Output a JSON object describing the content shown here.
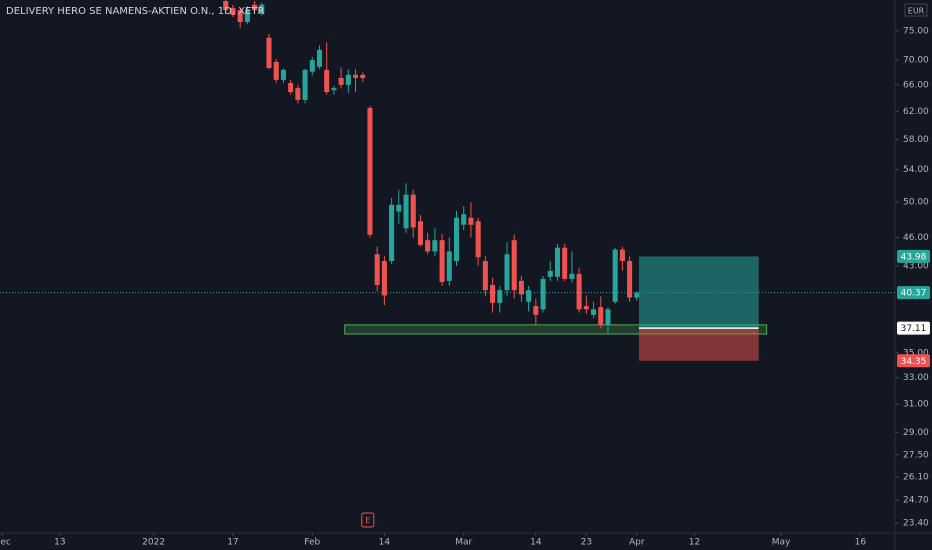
{
  "chart_data": {
    "type": "candlestick",
    "title": "DELIVERY HERO SE NAMENS-AKTIEN O.N., 1D, XETR",
    "currency": "EUR",
    "log_scale": true,
    "up_color": "#26a69a",
    "down_color": "#ef5350",
    "x": [
      0,
      1,
      2,
      3,
      4,
      5,
      6,
      7,
      8,
      9,
      10,
      11,
      12,
      13,
      14,
      15,
      16,
      17,
      18,
      19,
      20,
      21,
      22,
      23,
      24,
      25,
      26,
      27,
      28,
      29,
      30,
      31,
      32,
      33,
      34,
      35,
      36,
      37,
      38,
      39,
      40,
      41,
      42,
      43,
      44,
      45,
      46,
      47,
      48,
      49,
      50,
      51,
      52,
      53,
      54,
      55,
      56,
      57
    ],
    "open": [
      80.5,
      79.2,
      78.8,
      76.6,
      79.8,
      78.1,
      73.8,
      69.7,
      66.8,
      66.3,
      65.5,
      63.7,
      68.1,
      68.9,
      68.4,
      65.2,
      67.1,
      66.0,
      67.6,
      67.6,
      62.5,
      44.2,
      43.5,
      43.5,
      48.9,
      47.0,
      50.9,
      47.8,
      45.7,
      44.5,
      45.7,
      41.5,
      43.5,
      47.4,
      48.2,
      47.8,
      43.5,
      41.1,
      39.4,
      40.6,
      45.7,
      41.5,
      39.5,
      39.1,
      38.8,
      41.9,
      41.9,
      44.9,
      41.7,
      42.2,
      39.1,
      38.3,
      39.0,
      37.4,
      39.5,
      44.7,
      43.5,
      39.9
    ],
    "high": [
      81.5,
      79.8,
      79.2,
      79.5,
      80.5,
      80.2,
      74.5,
      70.2,
      68.6,
      66.8,
      66.0,
      68.6,
      70.5,
      72.5,
      73.0,
      65.8,
      68.8,
      68.5,
      68.5,
      68.0,
      62.8,
      45.0,
      44.0,
      50.5,
      51.5,
      52.3,
      51.5,
      48.5,
      46.5,
      47.0,
      46.4,
      46.0,
      49.0,
      49.5,
      50.0,
      48.2,
      44.0,
      41.8,
      41.0,
      45.5,
      46.3,
      42.0,
      41.0,
      39.8,
      42.0,
      43.5,
      45.3,
      45.3,
      44.5,
      42.8,
      40.1,
      39.5,
      40.0,
      39.0,
      44.9,
      45.0,
      44.0,
      40.5
    ],
    "low": [
      78.5,
      77.5,
      75.5,
      76.2,
      78.5,
      77.8,
      68.5,
      66.3,
      66.3,
      64.5,
      63.2,
      63.2,
      67.5,
      68.5,
      64.5,
      64.5,
      65.5,
      64.8,
      64.9,
      66.5,
      46.0,
      40.5,
      39.2,
      43.2,
      47.5,
      46.5,
      46.0,
      45.0,
      44.2,
      44.0,
      41.0,
      41.0,
      43.0,
      46.8,
      46.0,
      43.0,
      40.0,
      38.5,
      38.5,
      40.0,
      39.8,
      39.5,
      38.6,
      37.4,
      38.5,
      41.5,
      41.5,
      41.5,
      41.3,
      38.5,
      38.4,
      38.0,
      37.1,
      36.6,
      39.3,
      42.5,
      39.5,
      39.6
    ],
    "close": [
      78.8,
      77.9,
      76.6,
      78.8,
      78.8,
      79.8,
      68.7,
      66.8,
      68.4,
      64.9,
      63.7,
      68.4,
      70.0,
      71.7,
      64.9,
      65.5,
      66.0,
      67.6,
      67.1,
      67.1,
      46.3,
      41.1,
      40.1,
      49.7,
      49.7,
      50.9,
      47.1,
      45.2,
      44.5,
      45.7,
      41.4,
      44.5,
      48.2,
      48.6,
      47.4,
      43.9,
      40.6,
      39.4,
      40.6,
      44.2,
      40.6,
      40.2,
      40.6,
      38.3,
      41.7,
      42.5,
      44.9,
      41.7,
      42.2,
      38.8,
      38.8,
      38.8,
      37.4,
      38.8,
      44.7,
      43.5,
      39.9,
      40.37
    ],
    "xlim": [
      -31.3,
      92.8
    ],
    "ylim": [
      22.85,
      80.7
    ],
    "xticks": [
      {
        "value": -31,
        "label": "Dec"
      },
      {
        "value": -23,
        "label": "13"
      },
      {
        "value": -10,
        "label": "2022"
      },
      {
        "value": 1,
        "label": "17"
      },
      {
        "value": 12,
        "label": "Feb"
      },
      {
        "value": 22,
        "label": "14"
      },
      {
        "value": 33,
        "label": "Mar"
      },
      {
        "value": 43,
        "label": "14"
      },
      {
        "value": 50,
        "label": "23"
      },
      {
        "value": 57,
        "label": "Apr"
      },
      {
        "value": 65,
        "label": "12"
      },
      {
        "value": 77,
        "label": "May"
      },
      {
        "value": 88,
        "label": "16"
      }
    ],
    "yticks": [
      {
        "value": 75,
        "label": "75.00"
      },
      {
        "value": 70,
        "label": "70.00"
      },
      {
        "value": 66,
        "label": "66.00"
      },
      {
        "value": 62,
        "label": "62.00"
      },
      {
        "value": 58,
        "label": "58.00"
      },
      {
        "value": 54,
        "label": "54.00"
      },
      {
        "value": 50,
        "label": "50.00"
      },
      {
        "value": 46,
        "label": "46.00"
      },
      {
        "value": 43,
        "label": "43.00"
      },
      {
        "value": 35,
        "label": "35.00"
      },
      {
        "value": 33,
        "label": "33.00"
      },
      {
        "value": 31,
        "label": "31.00"
      },
      {
        "value": 29,
        "label": "29.00"
      },
      {
        "value": 27.5,
        "label": "27.50"
      },
      {
        "value": 26.1,
        "label": "26.10"
      },
      {
        "value": 24.7,
        "label": "24.70"
      },
      {
        "value": 23.4,
        "label": "23.40"
      }
    ],
    "last_price": 40.37,
    "zone": {
      "top": 37.4,
      "bottom": 36.6,
      "start": 16.5,
      "end": 75,
      "color": "#4caf50"
    },
    "position": {
      "entry": 37.11,
      "target": 43.98,
      "stop": 34.35,
      "start": 57.3,
      "end": 73.9,
      "profit_color": "#26a69a",
      "loss_color": "#ef5350"
    },
    "price_labels": [
      {
        "value": 43.98,
        "color": "#26a69a",
        "text_color": "#ffffff"
      },
      {
        "value": 40.37,
        "color": "#26a69a",
        "text_color": "#ffffff"
      },
      {
        "value": 37.11,
        "color": "#ffffff",
        "text_color": "#131722"
      },
      {
        "value": 34.35,
        "color": "#ef5350",
        "text_color": "#ffffff"
      }
    ],
    "earnings": {
      "label": "E",
      "x": 19.7
    }
  }
}
